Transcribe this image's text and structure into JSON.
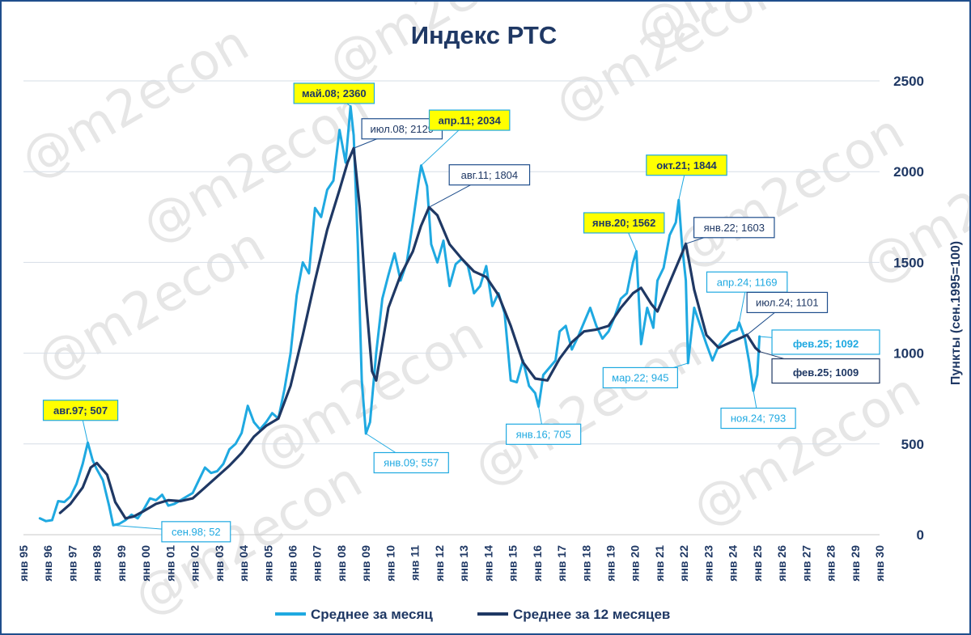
{
  "watermark": "@m2econ",
  "chart_data": {
    "type": "line",
    "title": "Индекс РТС",
    "ylabel": "Пункты (сен.1995=100)",
    "xlabel": "",
    "ylim": [
      0,
      2500
    ],
    "yticks": [
      0,
      500,
      1000,
      1500,
      2000,
      2500
    ],
    "xlim": [
      1995,
      2030
    ],
    "xticks": [
      "янв 95",
      "янв 96",
      "янв 97",
      "янв 98",
      "янв 99",
      "янв 00",
      "янв 01",
      "янв 02",
      "янв 03",
      "янв 04",
      "янв 05",
      "янв 06",
      "янв 07",
      "янв 08",
      "янв 09",
      "янв 10",
      "янв 11",
      "янв 12",
      "янв 13",
      "янв 14",
      "янв 15",
      "янв 16",
      "янв 17",
      "янв 18",
      "янв 19",
      "янв 20",
      "янв 21",
      "янв 22",
      "янв 23",
      "янв 24",
      "янв 25",
      "янв 26",
      "янв 27",
      "янв 28",
      "янв 29",
      "янв 30"
    ],
    "grid": true,
    "legend_position": "bottom",
    "series": [
      {
        "name": "Среднее за месяц",
        "color": "#1fa9e1",
        "points": [
          [
            1995.67,
            90
          ],
          [
            1995.92,
            75
          ],
          [
            1996.17,
            80
          ],
          [
            1996.42,
            185
          ],
          [
            1996.67,
            180
          ],
          [
            1996.92,
            210
          ],
          [
            1997.17,
            280
          ],
          [
            1997.42,
            390
          ],
          [
            1997.63,
            507
          ],
          [
            1997.83,
            410
          ],
          [
            1998.0,
            360
          ],
          [
            1998.25,
            300
          ],
          [
            1998.5,
            160
          ],
          [
            1998.67,
            52
          ],
          [
            1998.92,
            60
          ],
          [
            1999.17,
            80
          ],
          [
            1999.42,
            110
          ],
          [
            1999.67,
            90
          ],
          [
            1999.92,
            140
          ],
          [
            2000.17,
            200
          ],
          [
            2000.42,
            190
          ],
          [
            2000.67,
            220
          ],
          [
            2000.92,
            160
          ],
          [
            2001.17,
            170
          ],
          [
            2001.42,
            190
          ],
          [
            2001.67,
            210
          ],
          [
            2001.92,
            230
          ],
          [
            2002.17,
            300
          ],
          [
            2002.42,
            370
          ],
          [
            2002.67,
            340
          ],
          [
            2002.92,
            350
          ],
          [
            2003.17,
            390
          ],
          [
            2003.42,
            470
          ],
          [
            2003.67,
            500
          ],
          [
            2003.92,
            560
          ],
          [
            2004.17,
            710
          ],
          [
            2004.42,
            620
          ],
          [
            2004.67,
            580
          ],
          [
            2004.92,
            620
          ],
          [
            2005.17,
            670
          ],
          [
            2005.42,
            640
          ],
          [
            2005.67,
            800
          ],
          [
            2005.92,
            1000
          ],
          [
            2006.17,
            1320
          ],
          [
            2006.42,
            1500
          ],
          [
            2006.67,
            1440
          ],
          [
            2006.92,
            1800
          ],
          [
            2007.17,
            1750
          ],
          [
            2007.42,
            1900
          ],
          [
            2007.67,
            1950
          ],
          [
            2007.92,
            2230
          ],
          [
            2008.17,
            2050
          ],
          [
            2008.37,
            2360
          ],
          [
            2008.5,
            2200
          ],
          [
            2008.67,
            1600
          ],
          [
            2008.83,
            850
          ],
          [
            2009.0,
            557
          ],
          [
            2009.17,
            620
          ],
          [
            2009.42,
            1000
          ],
          [
            2009.67,
            1300
          ],
          [
            2009.92,
            1430
          ],
          [
            2010.17,
            1550
          ],
          [
            2010.42,
            1400
          ],
          [
            2010.67,
            1500
          ],
          [
            2010.92,
            1720
          ],
          [
            2011.17,
            1960
          ],
          [
            2011.26,
            2034
          ],
          [
            2011.5,
            1920
          ],
          [
            2011.67,
            1600
          ],
          [
            2011.92,
            1500
          ],
          [
            2012.17,
            1620
          ],
          [
            2012.42,
            1370
          ],
          [
            2012.67,
            1490
          ],
          [
            2012.92,
            1520
          ],
          [
            2013.17,
            1480
          ],
          [
            2013.42,
            1330
          ],
          [
            2013.67,
            1370
          ],
          [
            2013.92,
            1480
          ],
          [
            2014.17,
            1260
          ],
          [
            2014.42,
            1330
          ],
          [
            2014.67,
            1220
          ],
          [
            2014.92,
            850
          ],
          [
            2015.17,
            840
          ],
          [
            2015.42,
            960
          ],
          [
            2015.67,
            820
          ],
          [
            2015.92,
            780
          ],
          [
            2016.06,
            705
          ],
          [
            2016.25,
            880
          ],
          [
            2016.5,
            920
          ],
          [
            2016.75,
            960
          ],
          [
            2016.92,
            1120
          ],
          [
            2017.17,
            1150
          ],
          [
            2017.42,
            1020
          ],
          [
            2017.67,
            1090
          ],
          [
            2017.92,
            1170
          ],
          [
            2018.17,
            1250
          ],
          [
            2018.42,
            1150
          ],
          [
            2018.67,
            1080
          ],
          [
            2018.92,
            1120
          ],
          [
            2019.17,
            1200
          ],
          [
            2019.42,
            1300
          ],
          [
            2019.67,
            1330
          ],
          [
            2019.92,
            1500
          ],
          [
            2020.06,
            1562
          ],
          [
            2020.25,
            1050
          ],
          [
            2020.5,
            1250
          ],
          [
            2020.75,
            1140
          ],
          [
            2020.92,
            1400
          ],
          [
            2021.17,
            1470
          ],
          [
            2021.42,
            1650
          ],
          [
            2021.67,
            1720
          ],
          [
            2021.79,
            1844
          ],
          [
            2021.92,
            1600
          ],
          [
            2022.08,
            1400
          ],
          [
            2022.17,
            945
          ],
          [
            2022.42,
            1250
          ],
          [
            2022.67,
            1150
          ],
          [
            2022.92,
            1050
          ],
          [
            2023.17,
            960
          ],
          [
            2023.42,
            1040
          ],
          [
            2023.67,
            1080
          ],
          [
            2023.92,
            1120
          ],
          [
            2024.17,
            1130
          ],
          [
            2024.26,
            1169
          ],
          [
            2024.5,
            1080
          ],
          [
            2024.67,
            950
          ],
          [
            2024.84,
            793
          ],
          [
            2025.0,
            880
          ],
          [
            2025.09,
            1092
          ]
        ]
      },
      {
        "name": "Среднее за 12 месяцев",
        "color": "#1f3864",
        "points": [
          [
            1996.5,
            120
          ],
          [
            1996.92,
            170
          ],
          [
            1997.42,
            260
          ],
          [
            1997.75,
            370
          ],
          [
            1998.0,
            395
          ],
          [
            1998.42,
            330
          ],
          [
            1998.75,
            180
          ],
          [
            1999.17,
            90
          ],
          [
            1999.5,
            100
          ],
          [
            1999.92,
            130
          ],
          [
            2000.42,
            170
          ],
          [
            2000.92,
            190
          ],
          [
            2001.42,
            185
          ],
          [
            2001.92,
            200
          ],
          [
            2002.42,
            260
          ],
          [
            2002.92,
            320
          ],
          [
            2003.42,
            380
          ],
          [
            2003.92,
            450
          ],
          [
            2004.42,
            540
          ],
          [
            2004.92,
            600
          ],
          [
            2005.42,
            640
          ],
          [
            2005.92,
            820
          ],
          [
            2006.42,
            1100
          ],
          [
            2006.92,
            1400
          ],
          [
            2007.42,
            1680
          ],
          [
            2007.92,
            1900
          ],
          [
            2008.25,
            2050
          ],
          [
            2008.5,
            2129
          ],
          [
            2008.75,
            1800
          ],
          [
            2009.0,
            1300
          ],
          [
            2009.25,
            900
          ],
          [
            2009.42,
            850
          ],
          [
            2009.67,
            1050
          ],
          [
            2009.92,
            1250
          ],
          [
            2010.42,
            1430
          ],
          [
            2010.92,
            1560
          ],
          [
            2011.25,
            1700
          ],
          [
            2011.58,
            1804
          ],
          [
            2011.92,
            1760
          ],
          [
            2012.42,
            1600
          ],
          [
            2012.92,
            1520
          ],
          [
            2013.42,
            1450
          ],
          [
            2013.92,
            1420
          ],
          [
            2014.42,
            1320
          ],
          [
            2014.92,
            1150
          ],
          [
            2015.42,
            950
          ],
          [
            2015.92,
            860
          ],
          [
            2016.42,
            850
          ],
          [
            2016.92,
            970
          ],
          [
            2017.42,
            1060
          ],
          [
            2017.92,
            1120
          ],
          [
            2018.42,
            1130
          ],
          [
            2018.92,
            1150
          ],
          [
            2019.42,
            1250
          ],
          [
            2019.92,
            1330
          ],
          [
            2020.25,
            1360
          ],
          [
            2020.67,
            1270
          ],
          [
            2020.92,
            1230
          ],
          [
            2021.42,
            1390
          ],
          [
            2021.92,
            1550
          ],
          [
            2022.08,
            1603
          ],
          [
            2022.42,
            1350
          ],
          [
            2022.92,
            1100
          ],
          [
            2023.42,
            1030
          ],
          [
            2023.92,
            1060
          ],
          [
            2024.42,
            1090
          ],
          [
            2024.58,
            1101
          ],
          [
            2024.92,
            1030
          ],
          [
            2025.09,
            1009
          ]
        ]
      }
    ],
    "annotations": [
      {
        "text": "авг.97; 507",
        "x": 1997.63,
        "y": 507,
        "series": 0,
        "style": "yellow"
      },
      {
        "text": "сен.98; 52",
        "x": 1998.67,
        "y": 52,
        "series": 0,
        "style": "light"
      },
      {
        "text": "май.08; 2360",
        "x": 2008.37,
        "y": 2360,
        "series": 0,
        "style": "yellow"
      },
      {
        "text": "июл.08; 2129",
        "x": 2008.5,
        "y": 2129,
        "series": 1,
        "style": "dark"
      },
      {
        "text": "янв.09; 557",
        "x": 2009.0,
        "y": 557,
        "series": 0,
        "style": "light"
      },
      {
        "text": "апр.11; 2034",
        "x": 2011.26,
        "y": 2034,
        "series": 0,
        "style": "yellow"
      },
      {
        "text": "авг.11; 1804",
        "x": 2011.58,
        "y": 1804,
        "series": 1,
        "style": "dark"
      },
      {
        "text": "янв.16; 705",
        "x": 2016.06,
        "y": 705,
        "series": 0,
        "style": "light"
      },
      {
        "text": "янв.20; 1562",
        "x": 2020.06,
        "y": 1562,
        "series": 0,
        "style": "yellow"
      },
      {
        "text": "окт.21; 1844",
        "x": 2021.79,
        "y": 1844,
        "series": 0,
        "style": "yellow"
      },
      {
        "text": "янв.22; 1603",
        "x": 2022.08,
        "y": 1603,
        "series": 1,
        "style": "dark"
      },
      {
        "text": "мар.22; 945",
        "x": 2022.17,
        "y": 945,
        "series": 0,
        "style": "light"
      },
      {
        "text": "апр.24; 1169",
        "x": 2024.26,
        "y": 1169,
        "series": 0,
        "style": "light"
      },
      {
        "text": "июл.24; 1101",
        "x": 2024.58,
        "y": 1101,
        "series": 1,
        "style": "dark"
      },
      {
        "text": "ноя.24; 793",
        "x": 2024.84,
        "y": 793,
        "series": 0,
        "style": "light"
      },
      {
        "text": "фев.25; 1092",
        "x": 2025.09,
        "y": 1092,
        "series": 0,
        "style": "big-light"
      },
      {
        "text": "фев.25; 1009",
        "x": 2025.09,
        "y": 1009,
        "series": 1,
        "style": "big-dark"
      }
    ]
  }
}
